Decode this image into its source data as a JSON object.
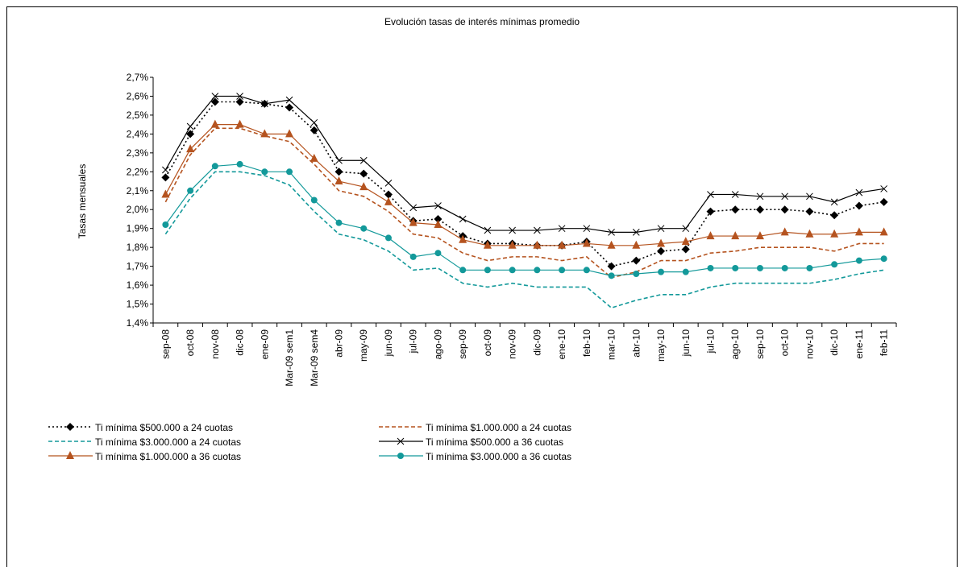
{
  "chart_data": {
    "type": "line",
    "title": "Evolución tasas de interés mínimas promedio",
    "y_label": "Tasas mensuales",
    "categories": [
      "sep-08",
      "oct-08",
      "nov-08",
      "dic-08",
      "ene-09",
      "Mar-09 sem1",
      "Mar-09 sem4",
      "abr-09",
      "may-09",
      "jun-09",
      "jul-09",
      "ago-09",
      "sep-09",
      "oct-09",
      "nov-09",
      "dic-09",
      "ene-10",
      "feb-10",
      "mar-10",
      "abr-10",
      "may-10",
      "jun-10",
      "jul-10",
      "ago-10",
      "sep-10",
      "oct-10",
      "nov-10",
      "dic-10",
      "ene-11",
      "feb-11"
    ],
    "ylim": [
      1.4,
      2.7
    ],
    "yticks": [
      {
        "value": 1.4,
        "label": "1,4%"
      },
      {
        "value": 1.5,
        "label": "1,5%"
      },
      {
        "value": 1.6,
        "label": "1,6%"
      },
      {
        "value": 1.7,
        "label": "1,7%"
      },
      {
        "value": 1.8,
        "label": "1,8%"
      },
      {
        "value": 1.9,
        "label": "1,9%"
      },
      {
        "value": 2.0,
        "label": "2,0%"
      },
      {
        "value": 2.1,
        "label": "2,1%"
      },
      {
        "value": 2.2,
        "label": "2,2%"
      },
      {
        "value": 2.3,
        "label": "2,3%"
      },
      {
        "value": 2.4,
        "label": "2,4%"
      },
      {
        "value": 2.5,
        "label": "2,5%"
      },
      {
        "value": 2.6,
        "label": "2,6%"
      },
      {
        "value": 2.7,
        "label": "2,7%"
      }
    ],
    "grid": false,
    "series": [
      {
        "name": "Ti mínima $500.000 a 24 cuotas",
        "color": "#000000",
        "dash": "dotted",
        "marker": "diamond",
        "values": [
          2.17,
          2.4,
          2.57,
          2.57,
          2.56,
          2.54,
          2.42,
          2.2,
          2.19,
          2.08,
          1.94,
          1.95,
          1.86,
          1.82,
          1.82,
          1.81,
          1.81,
          1.83,
          1.7,
          1.73,
          1.78,
          1.79,
          1.99,
          2.0,
          2.0,
          2.0,
          1.99,
          1.97,
          2.02,
          2.04
        ]
      },
      {
        "name": "Ti mínima $1.000.000 a 24 cuotas",
        "color": "#b5531f",
        "dash": "dashed",
        "marker": "none",
        "values": [
          2.04,
          2.29,
          2.43,
          2.43,
          2.39,
          2.36,
          2.24,
          2.1,
          2.07,
          1.99,
          1.87,
          1.85,
          1.77,
          1.73,
          1.75,
          1.75,
          1.73,
          1.75,
          1.64,
          1.67,
          1.73,
          1.73,
          1.77,
          1.78,
          1.8,
          1.8,
          1.8,
          1.78,
          1.82,
          1.82
        ]
      },
      {
        "name": "Ti mínima $3.000.000 a 24 cuotas",
        "color": "#13999a",
        "dash": "dashed",
        "marker": "none",
        "values": [
          1.87,
          2.06,
          2.2,
          2.2,
          2.18,
          2.13,
          1.99,
          1.87,
          1.84,
          1.78,
          1.68,
          1.69,
          1.61,
          1.59,
          1.61,
          1.59,
          1.59,
          1.59,
          1.48,
          1.52,
          1.55,
          1.55,
          1.59,
          1.61,
          1.61,
          1.61,
          1.61,
          1.63,
          1.66,
          1.68
        ]
      },
      {
        "name": "Ti mínima $500.000 a 36 cuotas",
        "color": "#000000",
        "dash": "solid",
        "marker": "cross",
        "values": [
          2.21,
          2.44,
          2.6,
          2.6,
          2.56,
          2.58,
          2.46,
          2.26,
          2.26,
          2.14,
          2.01,
          2.02,
          1.95,
          1.89,
          1.89,
          1.89,
          1.9,
          1.9,
          1.88,
          1.88,
          1.9,
          1.9,
          2.08,
          2.08,
          2.07,
          2.07,
          2.07,
          2.04,
          2.09,
          2.11
        ]
      },
      {
        "name": "Ti mínima $1.000.000 a 36 cuotas",
        "color": "#b5531f",
        "dash": "solid",
        "marker": "triangle",
        "values": [
          2.08,
          2.32,
          2.45,
          2.45,
          2.4,
          2.4,
          2.27,
          2.15,
          2.12,
          2.04,
          1.93,
          1.92,
          1.84,
          1.81,
          1.81,
          1.81,
          1.81,
          1.82,
          1.81,
          1.81,
          1.82,
          1.83,
          1.86,
          1.86,
          1.86,
          1.88,
          1.87,
          1.87,
          1.88,
          1.88
        ]
      },
      {
        "name": "Ti mínima $3.000.000 a 36 cuotas",
        "color": "#13999a",
        "dash": "solid",
        "marker": "circle",
        "values": [
          1.92,
          2.1,
          2.23,
          2.24,
          2.2,
          2.2,
          2.05,
          1.93,
          1.9,
          1.85,
          1.75,
          1.77,
          1.68,
          1.68,
          1.68,
          1.68,
          1.68,
          1.68,
          1.65,
          1.66,
          1.67,
          1.67,
          1.69,
          1.69,
          1.69,
          1.69,
          1.69,
          1.71,
          1.73,
          1.74
        ]
      }
    ]
  }
}
